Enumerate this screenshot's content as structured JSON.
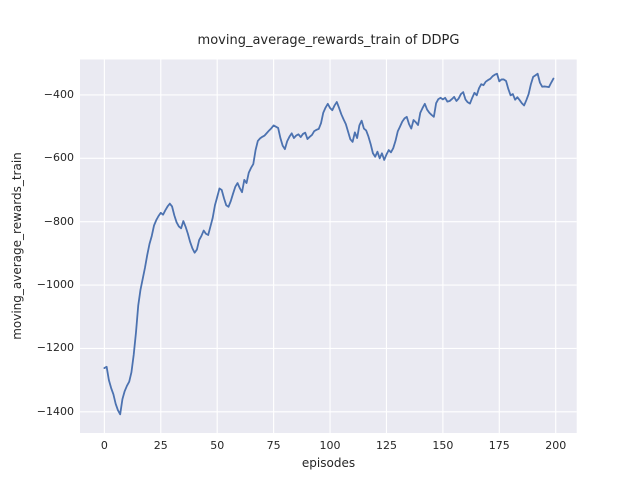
{
  "figure": {
    "title": "moving_average_rewards_train of DDPG",
    "xlabel": "episodes",
    "ylabel": "moving_average_rewards_train"
  },
  "chart_data": {
    "type": "line",
    "title": "moving_average_rewards_train of DDPG",
    "xlabel": "episodes",
    "ylabel": "moving_average_rewards_train",
    "grid": true,
    "legend_position": "none",
    "line_color": "#4c72b0",
    "plot_background_color": "#eaeaf2",
    "grid_color": "#ffffff",
    "text_color": "#262626",
    "xlim": [
      -10.8,
      209.3
    ],
    "ylim": [
      -1467,
      -288
    ],
    "x_ticks": [
      0,
      25,
      50,
      75,
      100,
      125,
      150,
      175,
      200
    ],
    "x_tick_labels": [
      "0",
      "25",
      "50",
      "75",
      "100",
      "125",
      "150",
      "175",
      "200"
    ],
    "y_ticks": [
      -400,
      -600,
      -800,
      -1000,
      -1200,
      -1400
    ],
    "y_tick_labels": [
      "−400",
      "−600",
      "−800",
      "−1000",
      "−1200",
      "−1400"
    ],
    "series": [
      {
        "name": "DDPG moving average rewards (train)",
        "x_start": 0,
        "x_step": 1,
        "values": [
          -1262,
          -1258,
          -1300,
          -1325,
          -1345,
          -1375,
          -1395,
          -1408,
          -1360,
          -1335,
          -1318,
          -1305,
          -1275,
          -1220,
          -1150,
          -1065,
          -1015,
          -980,
          -945,
          -905,
          -870,
          -845,
          -812,
          -795,
          -782,
          -772,
          -778,
          -764,
          -752,
          -743,
          -752,
          -780,
          -802,
          -815,
          -821,
          -798,
          -816,
          -838,
          -864,
          -884,
          -898,
          -888,
          -858,
          -845,
          -828,
          -838,
          -842,
          -815,
          -788,
          -748,
          -722,
          -695,
          -700,
          -726,
          -748,
          -753,
          -735,
          -712,
          -690,
          -678,
          -694,
          -707,
          -668,
          -678,
          -645,
          -630,
          -618,
          -574,
          -545,
          -537,
          -532,
          -528,
          -520,
          -512,
          -505,
          -496,
          -500,
          -504,
          -536,
          -560,
          -571,
          -546,
          -532,
          -521,
          -536,
          -528,
          -524,
          -533,
          -523,
          -519,
          -539,
          -532,
          -526,
          -514,
          -510,
          -507,
          -489,
          -456,
          -440,
          -428,
          -441,
          -448,
          -433,
          -422,
          -441,
          -461,
          -477,
          -492,
          -516,
          -540,
          -548,
          -518,
          -536,
          -496,
          -481,
          -506,
          -512,
          -531,
          -555,
          -584,
          -595,
          -579,
          -600,
          -584,
          -605,
          -588,
          -574,
          -581,
          -568,
          -545,
          -515,
          -500,
          -484,
          -474,
          -469,
          -492,
          -506,
          -479,
          -486,
          -495,
          -456,
          -441,
          -428,
          -446,
          -456,
          -463,
          -469,
          -426,
          -413,
          -409,
          -414,
          -409,
          -421,
          -419,
          -413,
          -406,
          -419,
          -411,
          -397,
          -391,
          -414,
          -423,
          -427,
          -409,
          -393,
          -401,
          -379,
          -366,
          -369,
          -358,
          -353,
          -349,
          -341,
          -336,
          -333,
          -357,
          -351,
          -351,
          -356,
          -381,
          -401,
          -397,
          -415,
          -407,
          -416,
          -426,
          -433,
          -416,
          -397,
          -366,
          -343,
          -338,
          -333,
          -361,
          -374,
          -373,
          -374,
          -375,
          -361,
          -348
        ]
      }
    ]
  }
}
